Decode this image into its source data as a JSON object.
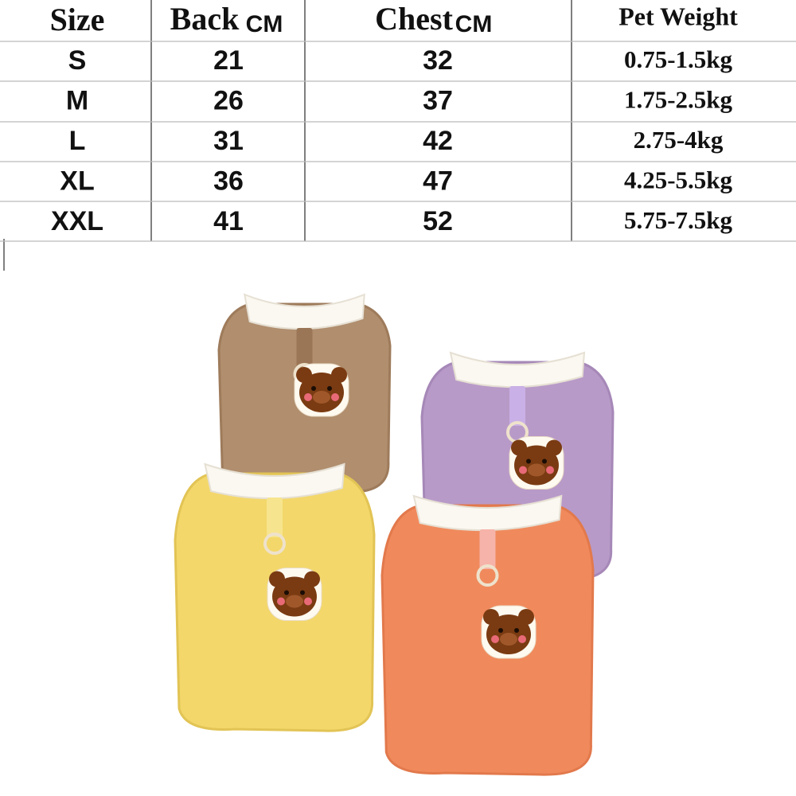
{
  "table": {
    "columns": [
      {
        "title": "Size"
      },
      {
        "title": "Back",
        "unit": "CM"
      },
      {
        "title": "Chest",
        "unit": "CM"
      },
      {
        "title": "Pet Weight"
      }
    ],
    "rows": [
      [
        "S",
        21,
        32,
        "0.75-1.5kg"
      ],
      [
        "M",
        26,
        37,
        "1.75-2.5kg"
      ],
      [
        "L",
        31,
        42,
        "2.75-4kg"
      ],
      [
        "XL",
        36,
        47,
        "4.25-5.5kg"
      ],
      [
        "XXL",
        41,
        52,
        "5.75-7.5kg"
      ]
    ]
  }
}
